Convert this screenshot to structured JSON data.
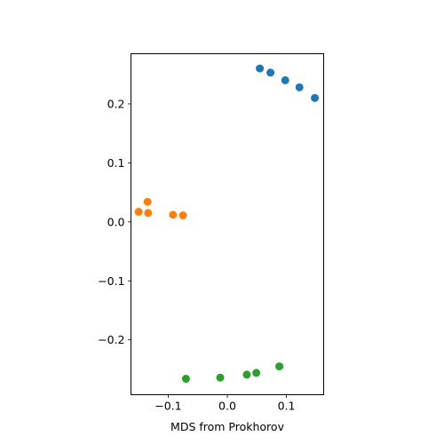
{
  "chart_data": {
    "type": "scatter",
    "title": "",
    "xlabel": "MDS from Prokhorov",
    "ylabel": "",
    "xlim": [
      -0.163,
      0.163
    ],
    "ylim": [
      -0.293,
      0.285
    ],
    "grid": false,
    "x_ticks": [
      {
        "value": -0.1,
        "label": "−0.1"
      },
      {
        "value": 0.0,
        "label": "0.0"
      },
      {
        "value": 0.1,
        "label": "0.1"
      }
    ],
    "y_ticks": [
      {
        "value": -0.2,
        "label": "−0.2"
      },
      {
        "value": -0.1,
        "label": "−0.1"
      },
      {
        "value": 0.0,
        "label": "0.0"
      },
      {
        "value": 0.1,
        "label": "0.1"
      },
      {
        "value": 0.2,
        "label": "0.2"
      }
    ],
    "series": [
      {
        "color": "#1f77b4",
        "points": [
          [
            0.055,
            0.26
          ],
          [
            0.073,
            0.253
          ],
          [
            0.098,
            0.24
          ],
          [
            0.122,
            0.228
          ],
          [
            0.148,
            0.21
          ]
        ]
      },
      {
        "color": "#ff7f0e",
        "points": [
          [
            -0.135,
            0.034
          ],
          [
            -0.15,
            0.017
          ],
          [
            -0.134,
            0.015
          ],
          [
            -0.092,
            0.012
          ],
          [
            -0.075,
            0.011
          ]
        ]
      },
      {
        "color": "#2ca02c",
        "points": [
          [
            -0.07,
            -0.266
          ],
          [
            -0.012,
            -0.264
          ],
          [
            0.033,
            -0.259
          ],
          [
            0.049,
            -0.256
          ],
          [
            0.088,
            -0.245
          ]
        ]
      }
    ]
  }
}
